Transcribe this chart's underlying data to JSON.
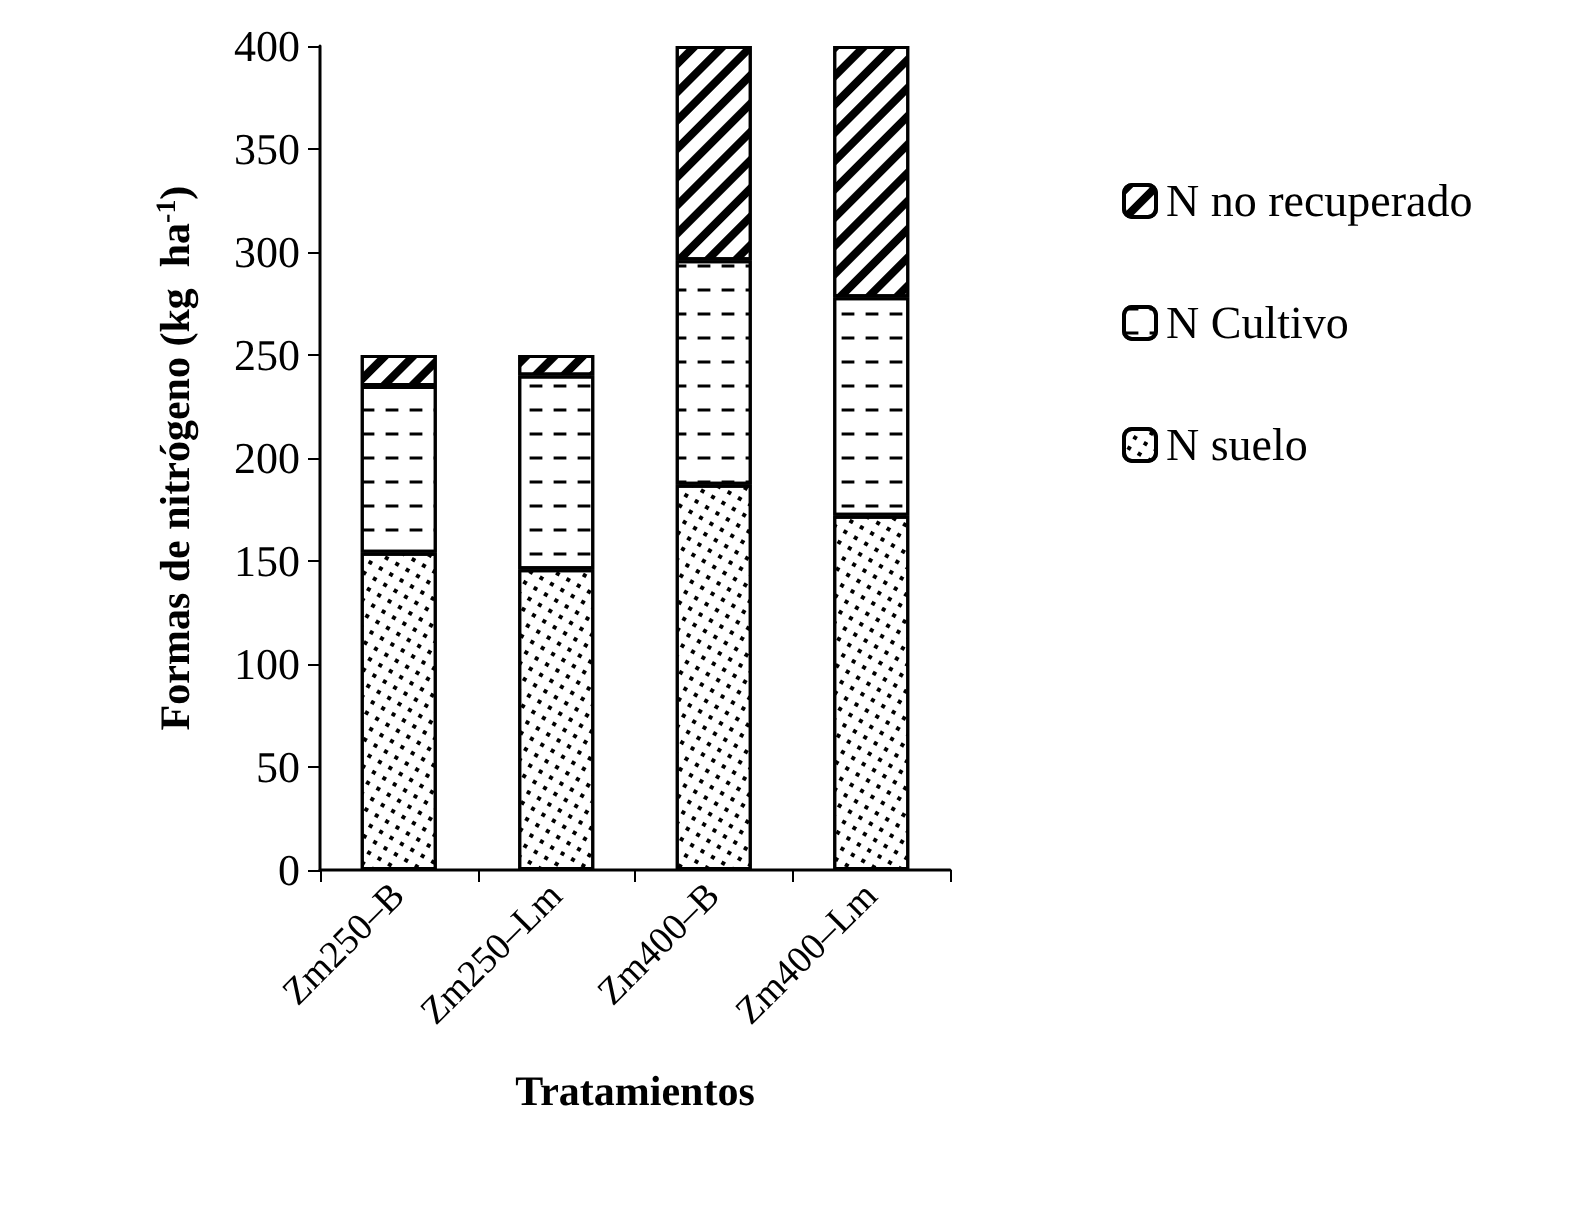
{
  "chart_data": {
    "type": "bar",
    "stacked": true,
    "xlabel": "Tratamientos",
    "ylabel": "Formas de nitrógeno (kg  ha$^{-1}$)",
    "categories": [
      "Zm250–B",
      "Zm250–Lm",
      "Zm400–B",
      "Zm400–Lm"
    ],
    "series": [
      {
        "name": "N suelo",
        "color": "#ffffff",
        "values": [
          154,
          146,
          187,
          172
        ]
      },
      {
        "name": "N Cultivo",
        "color": "#ffffff",
        "values": [
          81,
          94,
          109,
          106
        ]
      },
      {
        "name": "N no recuperado",
        "color": "#ffffff",
        "values": [
          15,
          10,
          104,
          122
        ]
      }
    ],
    "ylim": [
      0,
      400
    ],
    "yticks": [
      0,
      50,
      100,
      150,
      200,
      250,
      300,
      350,
      400
    ],
    "grid": false,
    "legend": "right"
  }
}
